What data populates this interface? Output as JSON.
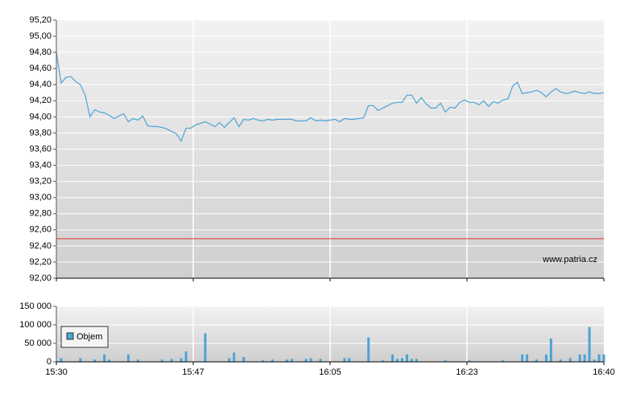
{
  "chart_data": [
    {
      "type": "line",
      "series": [
        {
          "color": "#4ba3d6",
          "values": [
            94.8,
            94.42,
            94.49,
            94.5,
            94.44,
            94.4,
            94.27,
            94.0,
            94.09,
            94.06,
            94.05,
            94.02,
            93.98,
            94.01,
            94.04,
            93.94,
            93.98,
            93.96,
            94.01,
            93.89,
            93.88,
            93.88,
            93.87,
            93.85,
            93.82,
            93.79,
            93.7,
            93.86,
            93.86,
            93.9,
            93.92,
            93.94,
            93.91,
            93.88,
            93.93,
            93.87,
            93.93,
            93.99,
            93.88,
            93.97,
            93.96,
            93.98,
            93.96,
            93.95,
            93.97,
            93.96,
            93.97,
            93.97,
            93.97,
            93.97,
            93.95,
            93.95,
            93.95,
            93.99,
            93.95,
            93.96,
            93.95,
            93.96,
            93.97,
            93.94,
            93.98,
            93.97,
            93.97,
            93.98,
            93.99,
            94.14,
            94.14,
            94.08,
            94.11,
            94.14,
            94.17,
            94.18,
            94.18,
            94.27,
            94.27,
            94.17,
            94.24,
            94.16,
            94.11,
            94.11,
            94.17,
            94.06,
            94.12,
            94.11,
            94.18,
            94.21,
            94.18,
            94.18,
            94.15,
            94.2,
            94.13,
            94.19,
            94.17,
            94.21,
            94.22,
            94.38,
            94.43,
            94.29,
            94.3,
            94.31,
            94.33,
            94.3,
            94.25,
            94.31,
            94.35,
            94.31,
            94.29,
            94.3,
            94.32,
            94.3,
            94.29,
            94.31,
            94.29,
            94.29,
            94.3
          ]
        }
      ],
      "ylim": [
        92,
        95.2
      ],
      "yticks": [
        {
          "value": 92,
          "label": "92,00"
        },
        {
          "value": 92.2,
          "label": "92,20"
        },
        {
          "value": 92.4,
          "label": "92,40"
        },
        {
          "value": 92.6,
          "label": "92,60"
        },
        {
          "value": 92.8,
          "label": "92,80"
        },
        {
          "value": 93,
          "label": "93,00"
        },
        {
          "value": 93.2,
          "label": "93,20"
        },
        {
          "value": 93.4,
          "label": "93,40"
        },
        {
          "value": 93.6,
          "label": "93,60"
        },
        {
          "value": 93.8,
          "label": "93,80"
        },
        {
          "value": 94,
          "label": "94,00"
        },
        {
          "value": 94.2,
          "label": "94,20"
        },
        {
          "value": 94.4,
          "label": "94,40"
        },
        {
          "value": 94.6,
          "label": "94,60"
        },
        {
          "value": 94.8,
          "label": "94,80"
        },
        {
          "value": 95,
          "label": "95,00"
        },
        {
          "value": 95.2,
          "label": "95,20"
        }
      ],
      "reference_line": {
        "value": 92.49,
        "color": "#e03030"
      },
      "grid": true,
      "watermark": "www.patria.cz"
    },
    {
      "type": "bar",
      "series": [
        {
          "name": "Objem",
          "color": "#4ba3d6",
          "values": [
            0,
            10000,
            0,
            0,
            0,
            10000,
            0,
            0,
            6000,
            0,
            20000,
            6000,
            0,
            0,
            0,
            20000,
            0,
            6000,
            0,
            0,
            0,
            0,
            6000,
            0,
            8000,
            0,
            10000,
            28000,
            0,
            0,
            0,
            77000,
            0,
            0,
            0,
            0,
            10000,
            25000,
            0,
            13000,
            0,
            0,
            0,
            4000,
            0,
            6000,
            0,
            0,
            6000,
            8000,
            0,
            0,
            8000,
            10000,
            0,
            8000,
            0,
            0,
            0,
            0,
            10000,
            10000,
            0,
            0,
            0,
            66000,
            0,
            0,
            4000,
            0,
            20000,
            8000,
            10000,
            20000,
            8000,
            8000,
            0,
            0,
            0,
            0,
            0,
            4000,
            0,
            0,
            0,
            0,
            4000,
            0,
            0,
            0,
            0,
            0,
            0,
            4000,
            0,
            0,
            0,
            20000,
            20000,
            0,
            6000,
            0,
            20000,
            63000,
            0,
            6000,
            0,
            10000,
            0,
            20000,
            20000,
            94000,
            6000,
            20000,
            20000
          ]
        }
      ],
      "ylim": [
        0,
        150000
      ],
      "yticks": [
        0,
        {
          "value": 50000,
          "label": "50 000"
        },
        {
          "value": 100000,
          "label": "100 000"
        },
        {
          "value": 150000,
          "label": "150 000"
        }
      ],
      "xticks": [
        "15:30",
        "15:47",
        "16:05",
        "16:23",
        "16:40"
      ],
      "grid": true,
      "legend": "lower-left"
    }
  ]
}
